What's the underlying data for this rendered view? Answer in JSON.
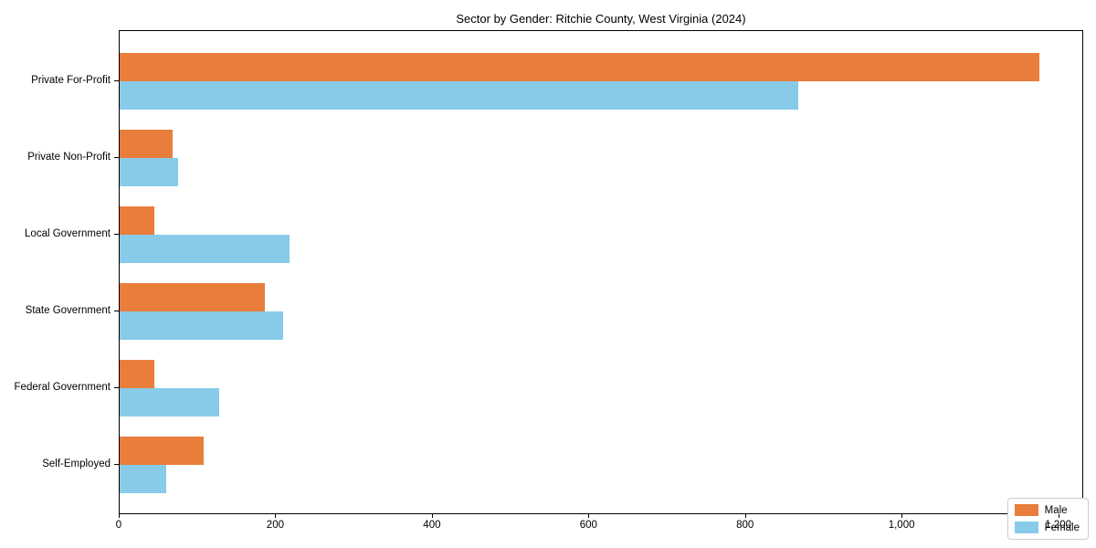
{
  "chart_data": {
    "type": "bar",
    "orientation": "horizontal",
    "title": "Sector by Gender: Ritchie County, West Virginia (2024)",
    "categories": [
      "Private For-Profit",
      "Private Non-Profit",
      "Local Government",
      "State Government",
      "Federal Government",
      "Self-Employed"
    ],
    "series": [
      {
        "name": "Male",
        "color": "#e87d3c",
        "values": [
          1175,
          68,
          44,
          185,
          44,
          107
        ]
      },
      {
        "name": "Female",
        "color": "#87cbe8",
        "values": [
          867,
          75,
          217,
          209,
          127,
          60
        ]
      }
    ],
    "xlabel": "",
    "ylabel": "",
    "xlim": [
      0,
      1232
    ],
    "xticks": {
      "values": [
        0,
        200,
        400,
        600,
        800,
        1000,
        1200
      ],
      "labels": [
        "0",
        "200",
        "400",
        "600",
        "800",
        "1,000",
        "1,200"
      ]
    },
    "grid": false,
    "legend": {
      "position": "lower right",
      "entries": [
        "Male",
        "Female"
      ]
    }
  }
}
